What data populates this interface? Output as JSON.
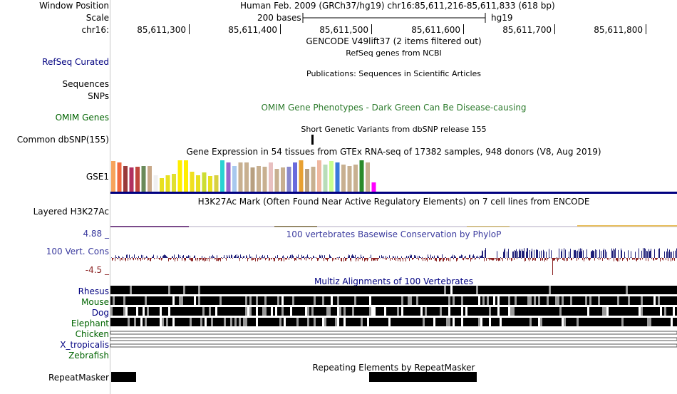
{
  "header": {
    "window_position_label": "Window Position",
    "window_position_text": "Human Feb. 2009 (GRCh37/hg19)   chr16:85,611,216-85,611,833 (618 bp)",
    "scale_label": "Scale",
    "scale_text": "200 bases",
    "scale_assembly": "hg19",
    "chrom_label": "chr16:",
    "ruler_ticks": [
      "85,611,300",
      "85,611,400",
      "85,611,500",
      "85,611,600",
      "85,611,700",
      "85,611,800"
    ]
  },
  "tracks": {
    "gencode_title": "GENCODE V49lift37 (2 items filtered out)",
    "refseq_label": "RefSeq Curated",
    "refseq_title": "RefSeq genes from NCBI",
    "publications_title": "Publications: Sequences in Scientific Articles",
    "sequences_label": "Sequences",
    "snps_label": "SNPs",
    "omim_label": "OMIM Genes",
    "omim_title": "OMIM Gene Phenotypes - Dark Green Can Be Disease-causing",
    "dbsnp_title": "Short Genetic Variants from dbSNP release 155",
    "dbsnp_label": "Common dbSNP(155)",
    "gtex_title": "Gene Expression in 54 tissues from GTEx RNA-seq of 17382 samples, 948 donors (V8, Aug 2019)",
    "gtex_label": "GSE1",
    "h3k27ac_label": "Layered H3K27Ac",
    "h3k27ac_title": "H3K27Ac Mark (Often Found Near Active Regulatory Elements) on 7 cell lines from ENCODE",
    "cons_max": "4.88 _",
    "cons_label": "100 Vert. Cons",
    "cons_title": "100 vertebrates Basewise Conservation by PhyloP",
    "cons_min": "-4.5 _",
    "multiz_title": "Multiz Alignments of 100 Vertebrates",
    "species": [
      {
        "name": "Rhesus",
        "color": "#000080"
      },
      {
        "name": "Mouse",
        "color": "#006400"
      },
      {
        "name": "Dog",
        "color": "#000080"
      },
      {
        "name": "Elephant",
        "color": "#006400"
      },
      {
        "name": "Chicken",
        "color": "#006400"
      },
      {
        "name": "X_tropicalis",
        "color": "#000080"
      },
      {
        "name": "Zebrafish",
        "color": "#006400"
      }
    ],
    "repeat_title": "Repeating Elements by RepeatMasker",
    "repeat_label": "RepeatMasker"
  },
  "colors": {
    "navy": "#000080",
    "dark_green": "#006400",
    "omim_green": "#2b7a2b",
    "cons_title": "#3a3a9e",
    "cons_pos": "#1e1e78",
    "cons_neg": "#8b2323",
    "cons_min_label": "#8b2323"
  },
  "gtex_colors": [
    "#f7a35c",
    "#f06840",
    "#9a3a3a",
    "#b03060",
    "#c0463c",
    "#6a8a5a",
    "#c8a888",
    "#f0f0f0",
    "#e8e020",
    "#e8e020",
    "#e0e030",
    "#ffee00",
    "#ffee00",
    "#f0e020",
    "#e8e020",
    "#ccdd33",
    "#e8e020",
    "#d8d040",
    "#2ad2d2",
    "#9966cc",
    "#a8c8ee",
    "#c8b090",
    "#c8b090",
    "#b8a080",
    "#c8b090",
    "#c8b090",
    "#e8c0c0",
    "#c8b090",
    "#c8b090",
    "#8888cc",
    "#6a6adc",
    "#e8a030",
    "#b8a080",
    "#c8b090",
    "#f0b8a0",
    "#b8ddb8",
    "#c8ff90",
    "#3a7adc",
    "#c8b090",
    "#c8b090",
    "#c8b090",
    "#2a8a2a",
    "#c8b090",
    "#ff00ff"
  ],
  "gtex_values": [
    0.95,
    0.9,
    0.8,
    0.75,
    0.78,
    0.8,
    0.8,
    0.52,
    0.42,
    0.52,
    0.55,
    0.98,
    0.98,
    0.62,
    0.52,
    0.6,
    0.48,
    0.5,
    0.98,
    0.9,
    0.8,
    0.92,
    0.9,
    0.75,
    0.8,
    0.78,
    0.9,
    0.72,
    0.75,
    0.78,
    0.92,
    0.98,
    0.72,
    0.78,
    0.98,
    0.85,
    0.95,
    0.92,
    0.85,
    0.8,
    0.85,
    0.98,
    0.9,
    0.28
  ]
}
